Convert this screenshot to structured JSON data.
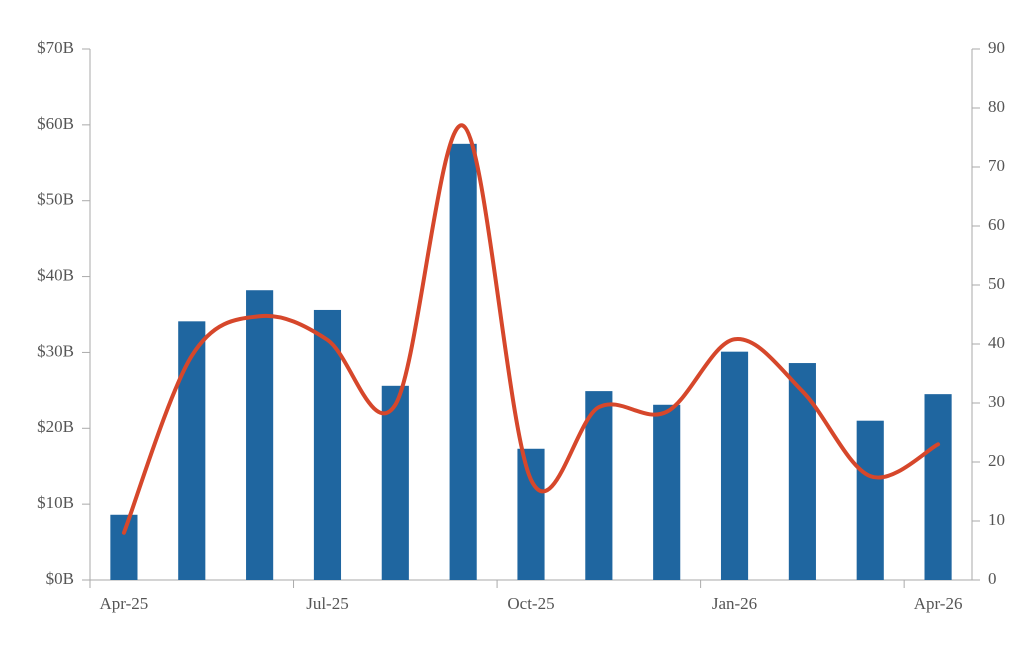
{
  "chart_data": {
    "type": "bar-line",
    "categories": [
      "Apr-25",
      null,
      null,
      "Jul-25",
      null,
      null,
      "Oct-25",
      null,
      null,
      "Jan-26",
      null,
      null,
      "Apr-26"
    ],
    "series": [
      {
        "type": "bar",
        "color": "#1f66a0",
        "axis": "y",
        "values": [
          8.6,
          34.1,
          38.2,
          35.6,
          25.6,
          57.5,
          17.3,
          24.9,
          23.1,
          30.1,
          28.6,
          21.0,
          24.5
        ]
      },
      {
        "type": "line",
        "color": "#d6472b",
        "axis": "y2",
        "values": [
          8,
          38,
          44.7,
          40.7,
          29.7,
          77,
          17,
          29.3,
          28.5,
          40.8,
          32,
          17.6,
          23
        ]
      }
    ],
    "ylim": [
      0,
      70
    ],
    "yticks": [
      {
        "value": 0,
        "label": "$0B"
      },
      {
        "value": 10,
        "label": "$10B"
      },
      {
        "value": 20,
        "label": "$20B"
      },
      {
        "value": 30,
        "label": "$30B"
      },
      {
        "value": 40,
        "label": "$40B"
      },
      {
        "value": 50,
        "label": "$50B"
      },
      {
        "value": 60,
        "label": "$60B"
      },
      {
        "value": 70,
        "label": "$70B"
      }
    ],
    "y2lim": [
      0,
      90
    ],
    "y2ticks": [
      0,
      10,
      20,
      30,
      40,
      50,
      60,
      70,
      80,
      90
    ],
    "grid": false
  }
}
